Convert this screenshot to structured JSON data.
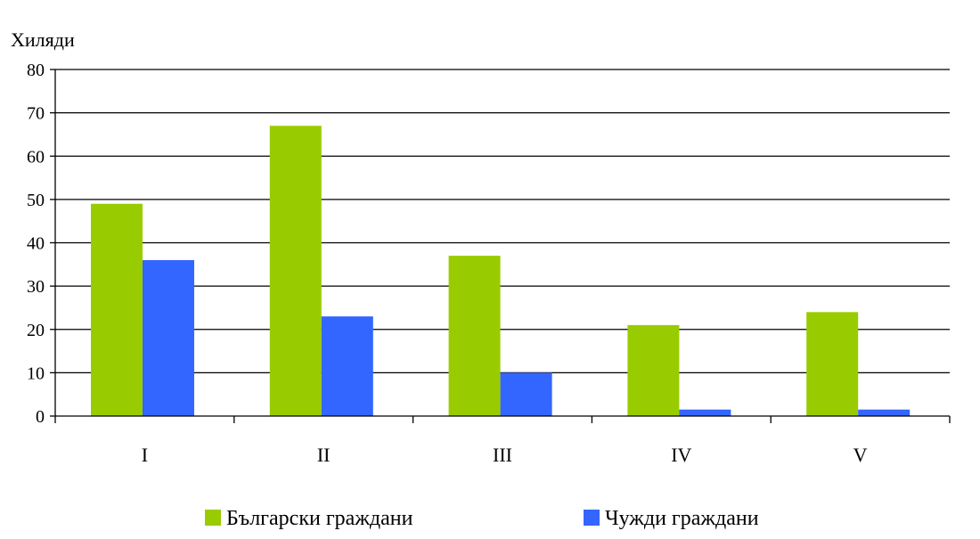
{
  "chart_data": {
    "type": "bar",
    "title": "",
    "xlabel": "",
    "ylabel": "Хиляди",
    "ylim": [
      0,
      80
    ],
    "yticks": [
      0,
      10,
      20,
      30,
      40,
      50,
      60,
      70,
      80
    ],
    "grid": true,
    "legend_position": "bottom",
    "categories": [
      "I",
      "II",
      "III",
      "IV",
      "V"
    ],
    "series": [
      {
        "name": "Български граждани",
        "color": "#99cc00",
        "values": [
          49,
          67,
          37,
          21,
          24
        ]
      },
      {
        "name": "Чужди граждани",
        "color": "#3366ff",
        "values": [
          36,
          23,
          10,
          1.5,
          1.5
        ]
      }
    ]
  }
}
